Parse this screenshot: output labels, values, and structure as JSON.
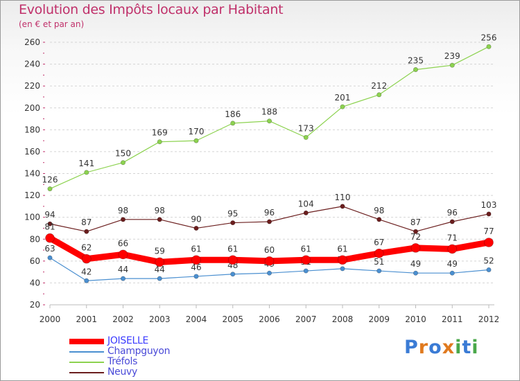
{
  "title": "Evolution des Impôts locaux par Habitant",
  "subtitle": "(en € et par an)",
  "logo": {
    "text": "Proxiti",
    "letters": [
      "P",
      "r",
      "o",
      "x",
      "i",
      "t",
      "i"
    ],
    "colors": [
      "#3a7bd5",
      "#e07a1f",
      "#3a7bd5",
      "#e07a1f",
      "#4aa84a",
      "#3a7bd5",
      "#4aa84a"
    ]
  },
  "chart_data": {
    "type": "line",
    "x": [
      "2000",
      "2001",
      "2002",
      "2003",
      "2004",
      "2005",
      "2006",
      "2007",
      "2008",
      "2009",
      "2010",
      "2011",
      "2012"
    ],
    "ylim": [
      20,
      260
    ],
    "yticks": [
      20,
      40,
      60,
      80,
      100,
      120,
      140,
      160,
      180,
      200,
      220,
      240,
      260
    ],
    "grid": true,
    "legend_position": "bottom-left",
    "series": [
      {
        "name": "Tréfols",
        "color": "#8cd24f",
        "values": [
          126,
          141,
          150,
          169,
          170,
          186,
          188,
          173,
          201,
          212,
          235,
          239,
          256
        ]
      },
      {
        "name": "Neuvy",
        "color": "#6b1e1e",
        "values": [
          94,
          87,
          98,
          98,
          90,
          95,
          96,
          104,
          110,
          98,
          87,
          96,
          103
        ]
      },
      {
        "name": "Champguyon",
        "color": "#4a8fd0",
        "values": [
          63,
          42,
          44,
          44,
          46,
          48,
          49,
          51,
          53,
          51,
          49,
          49,
          52
        ]
      },
      {
        "name": "JOISELLE",
        "color": "#ff0000",
        "values": [
          81,
          62,
          66,
          59,
          61,
          61,
          60,
          61,
          61,
          67,
          72,
          71,
          77
        ]
      }
    ],
    "legend": [
      {
        "name": "JOISELLE",
        "color": "#ff0000"
      },
      {
        "name": "Champguyon",
        "color": "#4a8fd0"
      },
      {
        "name": "Tréfols",
        "color": "#8cd24f"
      },
      {
        "name": "Neuvy",
        "color": "#6b1e1e"
      }
    ]
  }
}
